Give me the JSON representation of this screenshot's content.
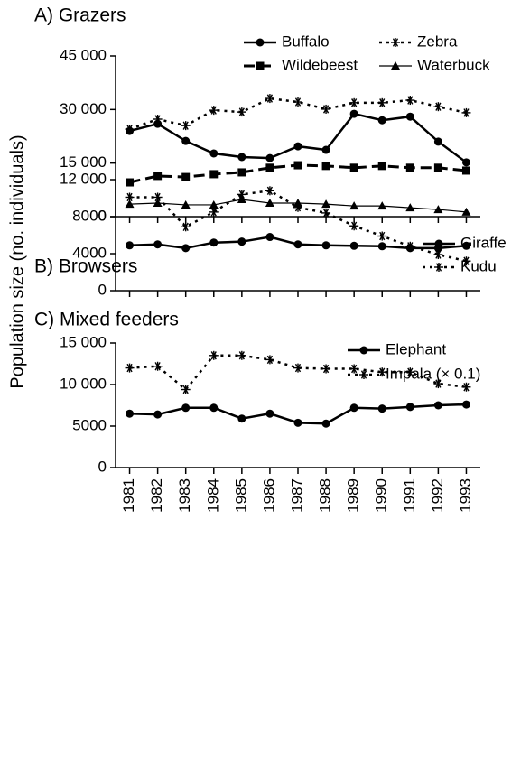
{
  "ylabel": "Population size (no. individuals)",
  "chart_data": [
    {
      "type": "line",
      "title": "A) Grazers",
      "x": [
        1981,
        1982,
        1983,
        1984,
        1985,
        1986,
        1987,
        1988,
        1989,
        1990,
        1991,
        1992,
        1993
      ],
      "xlim": [
        1980.5,
        1993.5
      ],
      "ylim": [
        0,
        45000
      ],
      "yticks": [
        0,
        {
          "value": 15000,
          "label": "15 000"
        },
        {
          "value": 30000,
          "label": "30 000"
        },
        {
          "value": 45000,
          "label": "45 000"
        }
      ],
      "series": [
        {
          "name": "Buffalo",
          "color": "#000000",
          "marker": "circle",
          "linestyle": "solid",
          "values": [
            24000,
            26000,
            21200,
            17700,
            16700,
            16400,
            19700,
            18700,
            28800,
            27000,
            28000,
            21000,
            15200
          ]
        },
        {
          "name": "Zebra",
          "color": "#000000",
          "marker": "asterisk",
          "linestyle": "dotted",
          "values": [
            24500,
            27300,
            25500,
            29800,
            29300,
            33100,
            32100,
            30100,
            31900,
            31900,
            32600,
            30800,
            29100
          ]
        },
        {
          "name": "Wildebeest",
          "color": "#000000",
          "marker": "square",
          "linestyle": "dashed",
          "values": [
            9600,
            11400,
            11100,
            11900,
            12400,
            13700,
            14400,
            14200,
            13700,
            14200,
            13700,
            13700,
            12900
          ]
        },
        {
          "name": "Waterbuck",
          "color": "#000000",
          "marker": "triangle",
          "linestyle": "thin",
          "values": [
            3500,
            3800,
            3300,
            3300,
            4800,
            3800,
            3800,
            3500,
            3000,
            3000,
            2500,
            2000,
            1300
          ]
        }
      ]
    },
    {
      "type": "line",
      "title": "B) Browsers",
      "x": [
        1981,
        1982,
        1983,
        1984,
        1985,
        1986,
        1987,
        1988,
        1989,
        1990,
        1991,
        1992,
        1993
      ],
      "xlim": [
        1980.5,
        1993.5
      ],
      "ylim": [
        0,
        12000
      ],
      "yticks": [
        0,
        4000,
        8000,
        {
          "value": 12000,
          "label": "12 000"
        }
      ],
      "series": [
        {
          "name": "Giraffe",
          "color": "#000000",
          "marker": "circle",
          "linestyle": "solid",
          "values": [
            4900,
            5000,
            4600,
            5200,
            5300,
            5800,
            5000,
            4900,
            4850,
            4800,
            4600,
            4600,
            4850
          ]
        },
        {
          "name": "Kudu",
          "color": "#000000",
          "marker": "asterisk",
          "linestyle": "dotted",
          "values": [
            10100,
            10100,
            6900,
            8500,
            10400,
            10800,
            9000,
            8400,
            7000,
            5900,
            4800,
            3900,
            3200
          ]
        }
      ]
    },
    {
      "type": "line",
      "title": "C) Mixed feeders",
      "x": [
        1981,
        1982,
        1983,
        1984,
        1985,
        1986,
        1987,
        1988,
        1989,
        1990,
        1991,
        1992,
        1993
      ],
      "xlim": [
        1980.5,
        1993.5
      ],
      "ylim": [
        0,
        15000
      ],
      "yticks": [
        0,
        5000,
        {
          "value": 10000,
          "label": "10 000"
        },
        {
          "value": 15000,
          "label": "15 000"
        }
      ],
      "series": [
        {
          "name": "Elephant",
          "color": "#000000",
          "marker": "circle",
          "linestyle": "solid",
          "values": [
            6500,
            6400,
            7200,
            7200,
            5900,
            6500,
            5400,
            5300,
            7200,
            7100,
            7300,
            7500,
            7600
          ]
        },
        {
          "name": "Impala (× 0.1)",
          "color": "#000000",
          "marker": "asterisk",
          "linestyle": "dotted",
          "values": [
            12000,
            12200,
            9400,
            13500,
            13500,
            13000,
            12000,
            11900,
            11900,
            11500,
            11500,
            10100,
            9700
          ]
        }
      ]
    }
  ]
}
